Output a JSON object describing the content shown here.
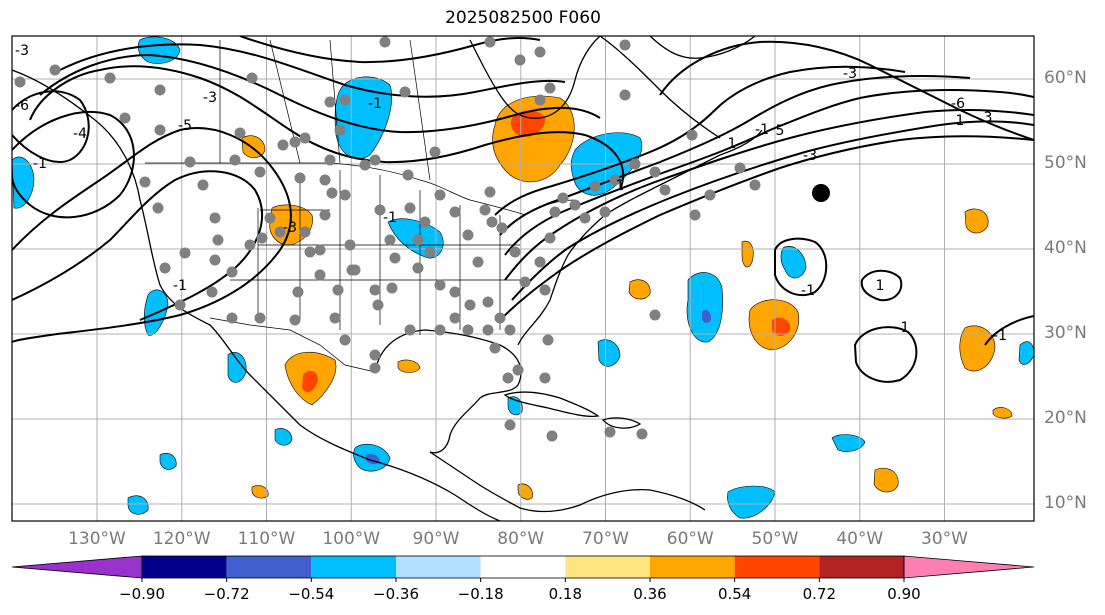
{
  "title": "2025082500 F060",
  "latitude_labels": [
    {
      "text": "60°N",
      "lat": 60
    },
    {
      "text": "50°N",
      "lat": 50
    },
    {
      "text": "40°N",
      "lat": 40
    },
    {
      "text": "30°N",
      "lat": 30
    },
    {
      "text": "20°N",
      "lat": 20
    },
    {
      "text": "10°N",
      "lat": 10
    }
  ],
  "longitude_labels": [
    {
      "text": "130°W",
      "lon": -130
    },
    {
      "text": "120°W",
      "lon": -120
    },
    {
      "text": "110°W",
      "lon": -110
    },
    {
      "text": "100°W",
      "lon": -100
    },
    {
      "text": "90°W",
      "lon": -90
    },
    {
      "text": "80°W",
      "lon": -80
    },
    {
      "text": "70°W",
      "lon": -70
    },
    {
      "text": "60°W",
      "lon": -60
    },
    {
      "text": "50°W",
      "lon": -50
    },
    {
      "text": "40°W",
      "lon": -40
    },
    {
      "text": "30°W",
      "lon": -30
    }
  ],
  "colorbar": {
    "extend": "both",
    "ticks": [
      "−0.90",
      "−0.72",
      "−0.54",
      "−0.36",
      "−0.18",
      "0.18",
      "0.36",
      "0.54",
      "0.72",
      "0.90"
    ],
    "under_color": "#9932cc",
    "over_color": "#ff80b0",
    "colors": [
      "#00008b",
      "#3f5fcf",
      "#00bfff",
      "#b0e0ff",
      "#ffffff",
      "#ffe680",
      "#ffa500",
      "#ff4500",
      "#b22222"
    ]
  },
  "contour_labels": [
    "-3",
    "-6",
    "-4",
    "-1",
    "-3",
    "-1",
    "-5",
    "-3",
    "-1",
    "-1",
    "1",
    "-1",
    "-3",
    "-6",
    "3",
    "5",
    "1",
    "-1",
    "1",
    "1",
    "-1",
    "1",
    "-3"
  ],
  "station_marker_color": "#808080",
  "highlight_marker_color": "#000000"
}
